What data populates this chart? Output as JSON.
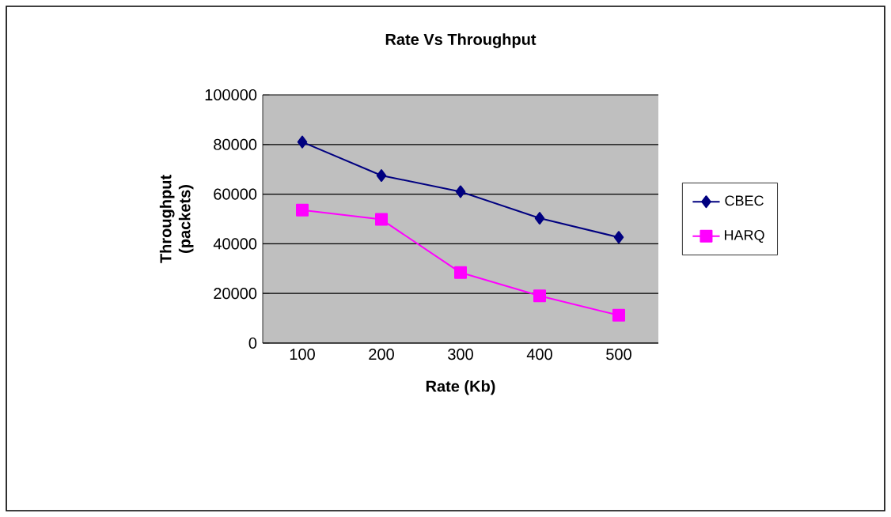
{
  "chart_data": {
    "type": "line",
    "title": "Rate Vs Throughput",
    "xlabel": "Rate (Kb)",
    "ylabel": "Throughput (packets)",
    "categories": [
      "100",
      "200",
      "300",
      "400",
      "500"
    ],
    "series": [
      {
        "name": "CBEC",
        "color": "#000080",
        "marker": "diamond",
        "values": [
          81000,
          67500,
          61000,
          50300,
          42600
        ]
      },
      {
        "name": "HARQ",
        "color": "#ff00ff",
        "marker": "square",
        "values": [
          53600,
          49800,
          28400,
          19000,
          11200
        ]
      }
    ],
    "ylim": [
      0,
      100000
    ],
    "yticks": [
      0,
      20000,
      40000,
      60000,
      80000,
      100000
    ],
    "grid": "y",
    "legend": "right"
  }
}
